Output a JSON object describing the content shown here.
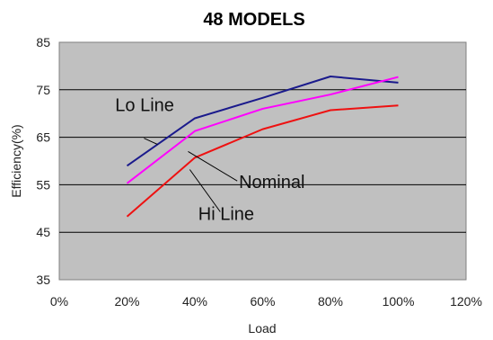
{
  "chart_data": {
    "type": "line",
    "title": "48 MODELS",
    "xlabel": "Load",
    "ylabel": "Efficiency(%)",
    "x": [
      20,
      40,
      60,
      80,
      100
    ],
    "xlim": [
      0,
      120
    ],
    "ylim": [
      35,
      85
    ],
    "x_ticks": [
      "0%",
      "20%",
      "40%",
      "60%",
      "80%",
      "100%",
      "120%"
    ],
    "y_ticks": [
      "35",
      "45",
      "55",
      "65",
      "75",
      "85"
    ],
    "grid": "horizontal",
    "plot_background": "#c0c0c0",
    "series": [
      {
        "name": "Lo Line",
        "color": "#1a1a8c",
        "values": [
          59,
          69,
          73.3,
          77.8,
          76.5
        ]
      },
      {
        "name": "Nominal",
        "color": "#ff00ff",
        "values": [
          55.3,
          66.3,
          71,
          74,
          77.7
        ]
      },
      {
        "name": "Hi Line",
        "color": "#ee1111",
        "values": [
          48.3,
          60.7,
          66.7,
          70.7,
          71.7
        ]
      }
    ],
    "annotations": [
      "Lo Line",
      "Nominal",
      "Hi Line"
    ]
  }
}
